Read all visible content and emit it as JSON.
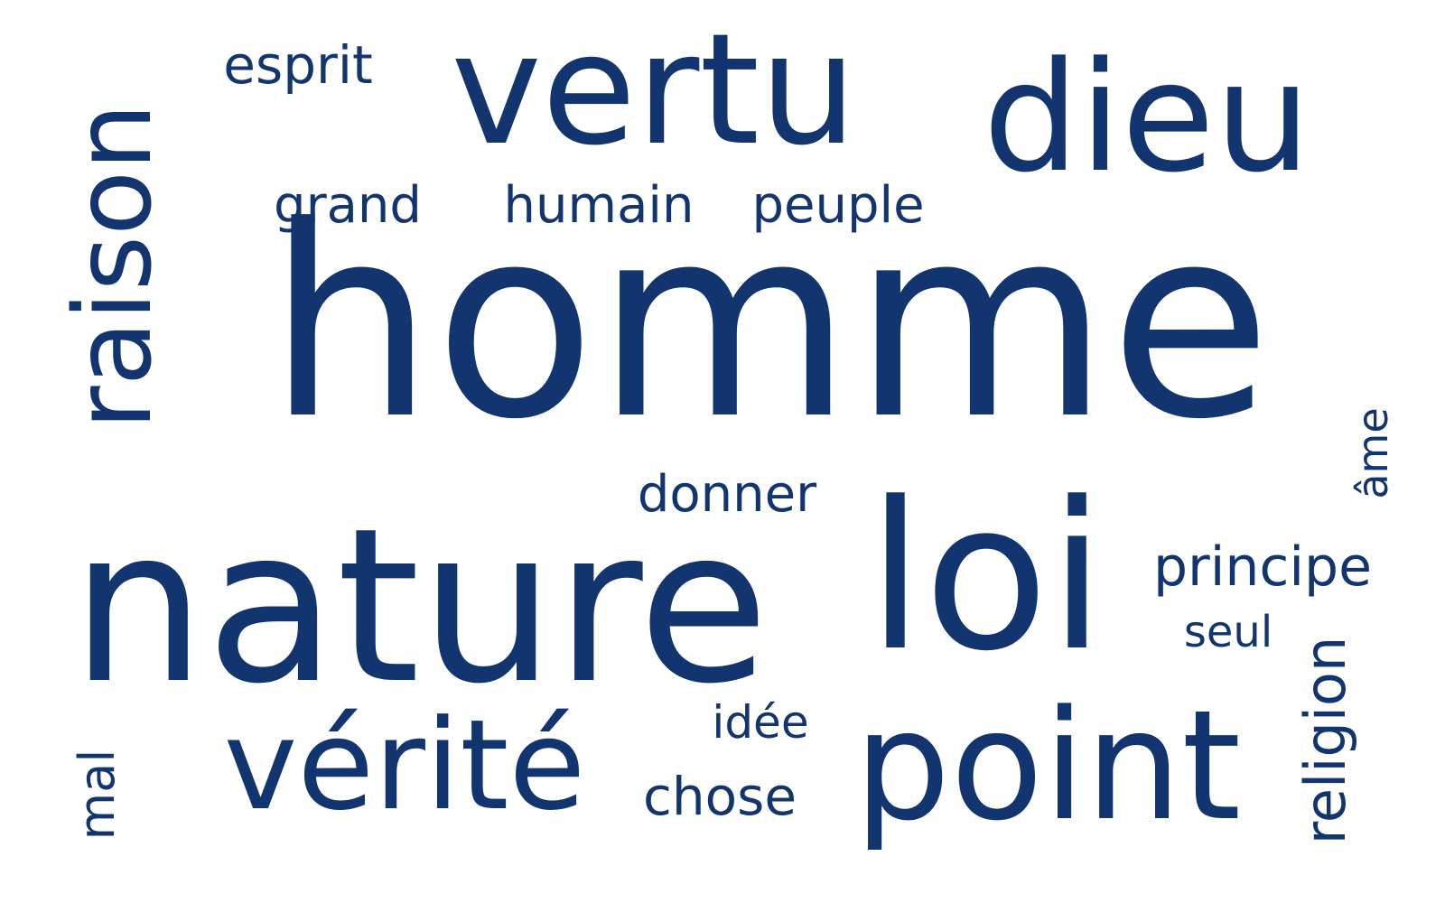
{
  "text_color": "#13356f",
  "background_color": "#ffffff",
  "words": {
    "homme": "homme",
    "nature": "nature",
    "loi": "loi",
    "vertu": "vertu",
    "dieu": "dieu",
    "raison": "raison",
    "verite": "vérité",
    "point": "point",
    "esprit": "esprit",
    "grand": "grand",
    "humain": "humain",
    "peuple": "peuple",
    "donner": "donner",
    "ame": "âme",
    "principe": "principe",
    "seul": "seul",
    "religion": "religion",
    "idee": "idée",
    "chose": "chose",
    "mal": "mal"
  }
}
